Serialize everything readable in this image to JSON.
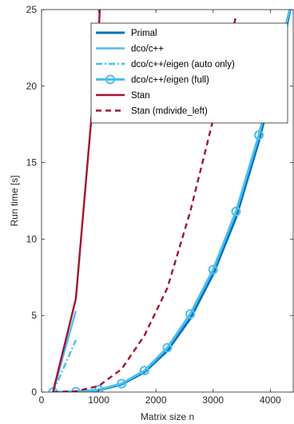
{
  "chart_data": {
    "type": "line",
    "title": "",
    "xlabel": "Matrix size n",
    "ylabel": "Run time [s]",
    "xlim": [
      0,
      4400
    ],
    "ylim": [
      0,
      25
    ],
    "xticks": [
      0,
      1000,
      2000,
      3000,
      4000
    ],
    "yticks": [
      0,
      5,
      10,
      15,
      20,
      25
    ],
    "grid": false,
    "legend_position": "top-right",
    "series": [
      {
        "name": "Primal",
        "color": "#0072bd",
        "style": "solid",
        "marker": "none",
        "x": [
          200,
          600,
          1000,
          1400,
          1800,
          2200,
          2600,
          3000,
          3400,
          3800,
          4200,
          4400
        ],
        "y": [
          0.0,
          0.02,
          0.12,
          0.5,
          1.3,
          2.7,
          4.8,
          7.7,
          11.4,
          16.4,
          22.3,
          26.0
        ]
      },
      {
        "name": "dco/c++",
        "color": "#4dbeee",
        "style": "solid",
        "marker": "none",
        "x": [
          200,
          600
        ],
        "y": [
          0.0,
          5.3
        ]
      },
      {
        "name": "dco/c++/eigen (auto only)",
        "color": "#4dbeee",
        "style": "dashdot",
        "marker": "none",
        "x": [
          200,
          600
        ],
        "y": [
          0.0,
          3.4
        ]
      },
      {
        "name": "dco/c++/eigen (full)",
        "color": "#4dbeee",
        "style": "solid",
        "marker": "circle",
        "x": [
          200,
          600,
          1000,
          1400,
          1800,
          2200,
          2600,
          3000,
          3400,
          3800,
          4200,
          4400
        ],
        "y": [
          0.0,
          0.02,
          0.15,
          0.55,
          1.4,
          2.9,
          5.1,
          8.0,
          11.8,
          16.8,
          22.8,
          26.0
        ]
      },
      {
        "name": "Stan",
        "color": "#a2142f",
        "style": "solid",
        "marker": "none",
        "x": [
          200,
          600,
          1000,
          1030
        ],
        "y": [
          0.0,
          6.1,
          23.5,
          26.0
        ]
      },
      {
        "name": "Stan (mdivide_left)",
        "color": "#a2142f",
        "style": "dashed",
        "marker": "none",
        "x": [
          200,
          600,
          1000,
          1400,
          1800,
          2200,
          2600,
          3000,
          3400
        ],
        "y": [
          0.0,
          0.05,
          0.4,
          1.5,
          3.7,
          6.8,
          11.8,
          17.8,
          24.6
        ]
      }
    ]
  }
}
